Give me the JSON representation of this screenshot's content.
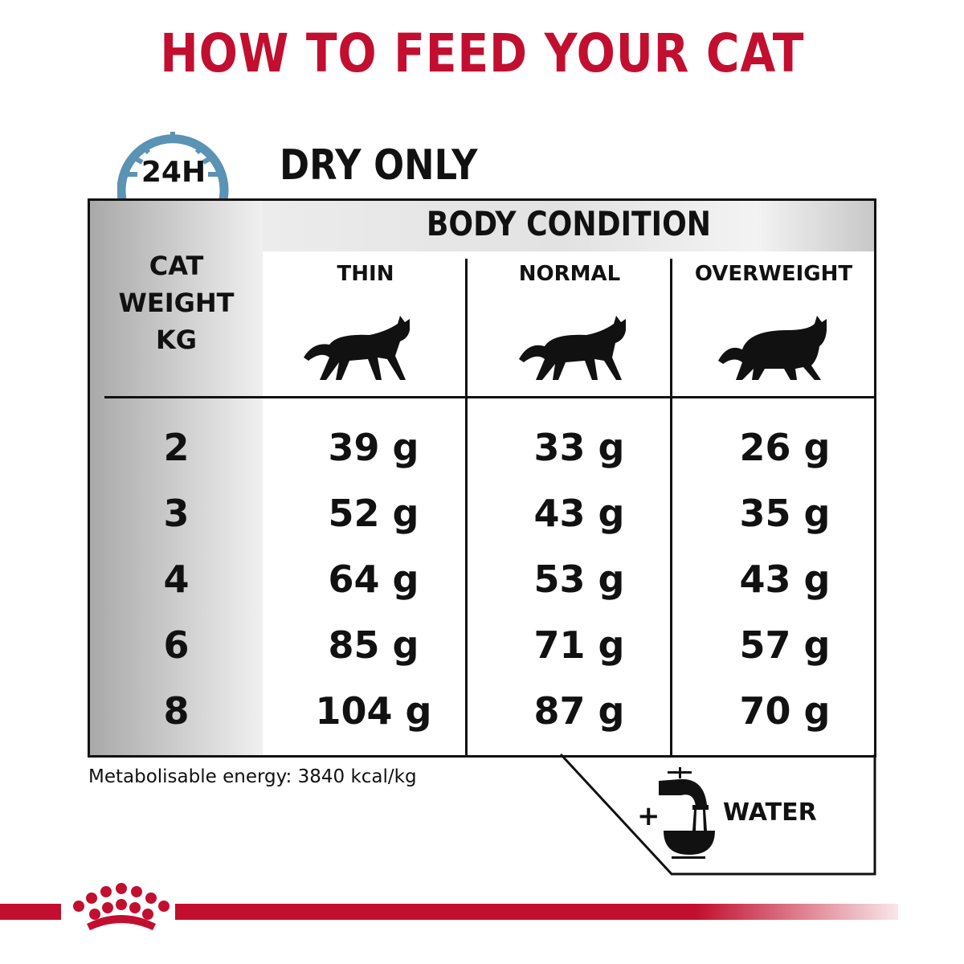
{
  "title": "HOW TO FEED YOUR CAT",
  "clock_label": "24H",
  "subtitle": "DRY ONLY",
  "table": {
    "group_header": "BODY CONDITION",
    "weight_header": [
      "CAT",
      "WEIGHT",
      "KG"
    ],
    "columns": [
      "THIN",
      "NORMAL",
      "OVERWEIGHT"
    ],
    "rows": [
      {
        "weight": "2",
        "values": [
          "39 g",
          "33 g",
          "26 g"
        ]
      },
      {
        "weight": "3",
        "values": [
          "52 g",
          "43 g",
          "35 g"
        ]
      },
      {
        "weight": "4",
        "values": [
          "64 g",
          "53 g",
          "43 g"
        ]
      },
      {
        "weight": "6",
        "values": [
          "85 g",
          "71 g",
          "57 g"
        ]
      },
      {
        "weight": "8",
        "values": [
          "104 g",
          "87 g",
          "70 g"
        ]
      }
    ]
  },
  "energy": "Metabolisable energy: 3840 kcal/kg",
  "water": {
    "plus": "+",
    "label": "WATER",
    "icon": "tap-bowl-icon"
  },
  "colors": {
    "brand_red": "#c20f2f",
    "clock_blue": "#5a93b4"
  },
  "logo": "royal-canin-crown-logo"
}
